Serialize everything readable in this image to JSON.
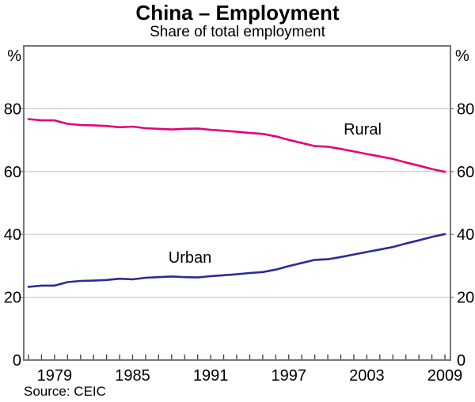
{
  "header": {
    "title": "China – Employment",
    "subtitle": "Share of total employment"
  },
  "source_note": "Source: CEIC",
  "axes": {
    "unit_label": "%",
    "y_ticks": [
      0,
      20,
      40,
      60,
      80
    ],
    "y_gridlines": [
      20,
      40,
      60,
      80
    ],
    "x_labeled_years": [
      1979,
      1985,
      1991,
      1997,
      2003,
      2009
    ]
  },
  "colors": {
    "rural": "#E4007C",
    "urban": "#2B2B99",
    "gridline": "#C9C9C9",
    "frame": "#767676",
    "tick": "#3A3A3A"
  },
  "chart_data": {
    "type": "line",
    "title": "China – Employment",
    "subtitle": "Share of total employment",
    "xlabel": "",
    "ylabel": "%",
    "ylim": [
      0,
      100
    ],
    "grid": "horizontal",
    "legend": "inline-labels",
    "x": [
      1977,
      1978,
      1979,
      1980,
      1981,
      1982,
      1983,
      1984,
      1985,
      1986,
      1987,
      1988,
      1989,
      1990,
      1991,
      1992,
      1993,
      1994,
      1995,
      1996,
      1997,
      1998,
      1999,
      2000,
      2001,
      2002,
      2003,
      2004,
      2005,
      2006,
      2007,
      2008,
      2009
    ],
    "series": [
      {
        "name": "Rural",
        "color": "#E4007C",
        "values": [
          76.7,
          76.3,
          76.3,
          75.2,
          74.8,
          74.7,
          74.5,
          74.1,
          74.3,
          73.8,
          73.6,
          73.4,
          73.6,
          73.7,
          73.3,
          73.0,
          72.7,
          72.3,
          72.0,
          71.2,
          70.1,
          69.1,
          68.1,
          67.9,
          67.2,
          66.4,
          65.6,
          64.8,
          64.0,
          62.9,
          61.9,
          60.8,
          59.9
        ]
      },
      {
        "name": "Urban",
        "color": "#2B2B99",
        "values": [
          23.3,
          23.7,
          23.7,
          24.8,
          25.2,
          25.3,
          25.5,
          25.9,
          25.7,
          26.2,
          26.4,
          26.6,
          26.4,
          26.3,
          26.7,
          27.0,
          27.3,
          27.7,
          28.0,
          28.8,
          29.9,
          30.9,
          31.9,
          32.1,
          32.8,
          33.6,
          34.4,
          35.2,
          36.0,
          37.1,
          38.1,
          39.2,
          40.1
        ]
      }
    ],
    "source": "Source: CEIC"
  }
}
